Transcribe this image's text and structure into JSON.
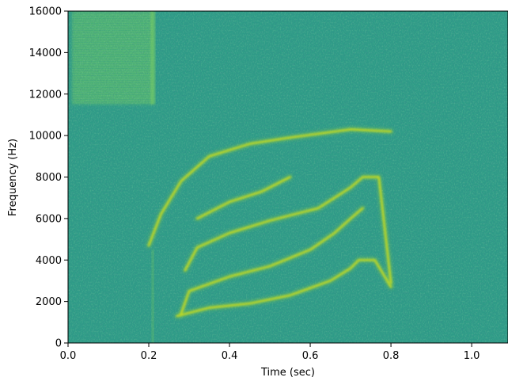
{
  "chart_data": {
    "type": "heatmap",
    "title": "",
    "xlabel": "Time (sec)",
    "ylabel": "Frequency (Hz)",
    "xlim": [
      0,
      1.09
    ],
    "ylim": [
      0,
      16000
    ],
    "x_ticks": [
      0.0,
      0.2,
      0.4,
      0.6,
      0.8,
      1.0
    ],
    "x_tick_labels": [
      "0.0",
      "0.2",
      "0.4",
      "0.6",
      "0.8",
      "1.0"
    ],
    "y_ticks": [
      0,
      2000,
      4000,
      6000,
      8000,
      10000,
      12000,
      14000,
      16000
    ],
    "y_tick_labels": [
      "0",
      "2000",
      "4000",
      "6000",
      "8000",
      "10000",
      "12000",
      "14000",
      "16000"
    ],
    "colormap": "viridis",
    "background_color": "#2e9c87",
    "grid": false,
    "series": [
      {
        "points": [
          [
            0.27,
            1300
          ],
          [
            0.35,
            1700
          ],
          [
            0.45,
            1900
          ],
          [
            0.55,
            2300
          ],
          [
            0.65,
            3000
          ],
          [
            0.7,
            3600
          ],
          [
            0.72,
            4000
          ],
          [
            0.76,
            4000
          ],
          [
            0.8,
            2700
          ]
        ]
      },
      {
        "points": [
          [
            0.28,
            1400
          ],
          [
            0.3,
            2500
          ],
          [
            0.4,
            3200
          ],
          [
            0.5,
            3700
          ],
          [
            0.6,
            4500
          ],
          [
            0.66,
            5300
          ],
          [
            0.7,
            6000
          ],
          [
            0.73,
            6500
          ]
        ]
      },
      {
        "points": [
          [
            0.29,
            3500
          ],
          [
            0.32,
            4600
          ],
          [
            0.4,
            5300
          ],
          [
            0.5,
            5900
          ],
          [
            0.58,
            6300
          ],
          [
            0.62,
            6500
          ],
          [
            0.7,
            7500
          ],
          [
            0.73,
            8000
          ],
          [
            0.77,
            8000
          ],
          [
            0.8,
            2900
          ]
        ]
      },
      {
        "points": [
          [
            0.2,
            4700
          ],
          [
            0.23,
            6200
          ],
          [
            0.28,
            7800
          ],
          [
            0.35,
            9000
          ],
          [
            0.45,
            9600
          ],
          [
            0.55,
            9900
          ],
          [
            0.7,
            10300
          ],
          [
            0.8,
            10200
          ]
        ]
      },
      {
        "points": [
          [
            0.32,
            6000
          ],
          [
            0.4,
            6800
          ],
          [
            0.48,
            7300
          ],
          [
            0.55,
            8000
          ]
        ]
      }
    ],
    "noise_burst": {
      "x_range": [
        0.01,
        0.21
      ],
      "y_range": [
        11500,
        16000
      ]
    },
    "click_line": {
      "x": 0.21
    }
  }
}
